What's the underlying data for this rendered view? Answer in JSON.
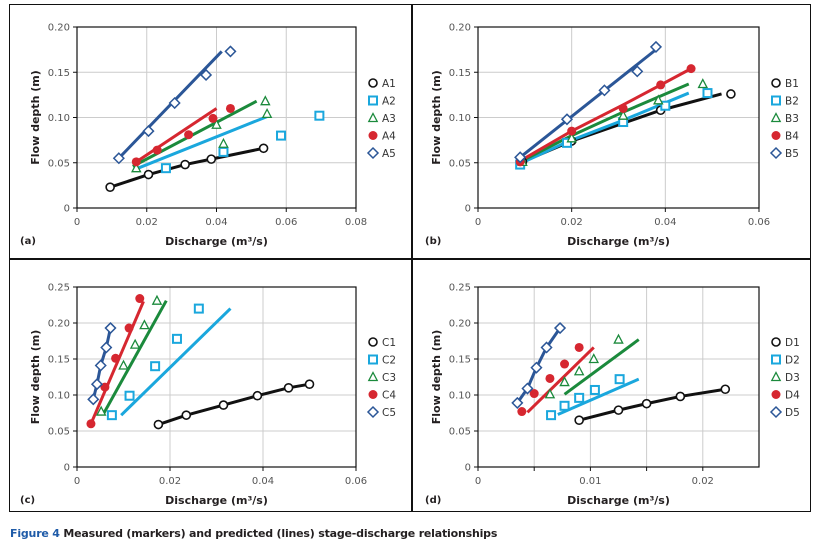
{
  "caption": {
    "figure_label": "Figure 4",
    "text": "Measured (markers) and predicted (lines) stage-discharge relationships"
  },
  "colors": {
    "s1": "#111111",
    "s2": "#1aa7dd",
    "s3": "#1b8a3c",
    "s4": "#d62730",
    "s5": "#2b5697",
    "grid": "#cccccc"
  },
  "chart_data": [
    {
      "type": "scatter",
      "panel_label": "(a)",
      "xlabel": "Discharge (m³/s)",
      "ylabel": "Flow depth (m)",
      "xlim": [
        0,
        0.08
      ],
      "ylim": [
        0,
        0.2
      ],
      "xticks": [
        0,
        0.02,
        0.04,
        0.06,
        0.08
      ],
      "xtick_labels": [
        "0",
        "0.02",
        "0.04",
        "0.06",
        "0.08"
      ],
      "yticks": [
        0,
        0.05,
        0.1,
        0.15,
        0.2
      ],
      "ytick_labels": [
        "0",
        "0.05",
        "0.10",
        "0.15",
        "0.20"
      ],
      "xgrid": [
        0.02,
        0.04,
        0.06
      ],
      "grid": true,
      "legend_position": "right",
      "series": [
        {
          "name": "A1",
          "marker": "circle",
          "points": [
            [
              0.0095,
              0.023
            ],
            [
              0.0205,
              0.037
            ],
            [
              0.031,
              0.048
            ],
            [
              0.0385,
              0.054
            ],
            [
              0.0535,
              0.066
            ]
          ],
          "line": [
            [
              0.0095,
              0.023
            ],
            [
              0.0205,
              0.037
            ],
            [
              0.031,
              0.048
            ],
            [
              0.0385,
              0.054
            ],
            [
              0.0535,
              0.066
            ]
          ]
        },
        {
          "name": "A2",
          "marker": "square",
          "points": [
            [
              0.0255,
              0.044
            ],
            [
              0.042,
              0.062
            ],
            [
              0.0585,
              0.08
            ],
            [
              0.0695,
              0.102
            ]
          ],
          "line": [
            [
              0.0175,
              0.044
            ],
            [
              0.0545,
              0.101
            ]
          ]
        },
        {
          "name": "A3",
          "marker": "triangle",
          "points": [
            [
              0.017,
              0.044
            ],
            [
              0.04,
              0.092
            ],
            [
              0.042,
              0.071
            ],
            [
              0.054,
              0.118
            ],
            [
              0.0545,
              0.104
            ]
          ],
          "line": [
            [
              0.016,
              0.046
            ],
            [
              0.0515,
              0.118
            ]
          ]
        },
        {
          "name": "A4",
          "marker": "dot",
          "points": [
            [
              0.017,
              0.051
            ],
            [
              0.023,
              0.064
            ],
            [
              0.032,
              0.081
            ],
            [
              0.039,
              0.099
            ],
            [
              0.044,
              0.11
            ]
          ],
          "line": [
            [
              0.017,
              0.051
            ],
            [
              0.04,
              0.11
            ]
          ]
        },
        {
          "name": "A5",
          "marker": "diamond",
          "points": [
            [
              0.012,
              0.055
            ],
            [
              0.0205,
              0.085
            ],
            [
              0.028,
              0.116
            ],
            [
              0.037,
              0.147
            ],
            [
              0.044,
              0.173
            ]
          ],
          "line": [
            [
              0.012,
              0.055
            ],
            [
              0.0415,
              0.173
            ]
          ]
        }
      ]
    },
    {
      "type": "scatter",
      "panel_label": "(b)",
      "xlabel": "Discharge (m³/s)",
      "ylabel": "Flow depth (m)",
      "xlim": [
        0,
        0.06
      ],
      "ylim": [
        0,
        0.2
      ],
      "xticks": [
        0,
        0.02,
        0.04,
        0.06
      ],
      "xtick_labels": [
        "0",
        "0.02",
        "0.04",
        "0.06"
      ],
      "yticks": [
        0,
        0.05,
        0.1,
        0.15,
        0.2
      ],
      "ytick_labels": [
        "0",
        "0.05",
        "0.10",
        "0.15",
        "0.20"
      ],
      "xgrid": [
        0.02,
        0.04
      ],
      "grid": true,
      "legend_position": "right",
      "series": [
        {
          "name": "B1",
          "marker": "circle",
          "points": [
            [
              0.0095,
              0.051
            ],
            [
              0.02,
              0.074
            ],
            [
              0.039,
              0.108
            ],
            [
              0.054,
              0.126
            ]
          ],
          "line": [
            [
              0.0095,
              0.051
            ],
            [
              0.02,
              0.074
            ],
            [
              0.039,
              0.108
            ],
            [
              0.052,
              0.126
            ]
          ]
        },
        {
          "name": "B2",
          "marker": "square",
          "points": [
            [
              0.009,
              0.048
            ],
            [
              0.019,
              0.072
            ],
            [
              0.031,
              0.095
            ],
            [
              0.04,
              0.113
            ],
            [
              0.049,
              0.127
            ]
          ],
          "line": [
            [
              0.009,
              0.049
            ],
            [
              0.019,
              0.073
            ],
            [
              0.031,
              0.097
            ],
            [
              0.045,
              0.127
            ]
          ]
        },
        {
          "name": "B3",
          "marker": "triangle",
          "points": [
            [
              0.0095,
              0.051
            ],
            [
              0.02,
              0.077
            ],
            [
              0.031,
              0.102
            ],
            [
              0.0385,
              0.119
            ],
            [
              0.048,
              0.137
            ]
          ],
          "line": [
            [
              0.009,
              0.051
            ],
            [
              0.02,
              0.08
            ],
            [
              0.031,
              0.106
            ],
            [
              0.045,
              0.137
            ]
          ]
        },
        {
          "name": "B4",
          "marker": "dot",
          "points": [
            [
              0.009,
              0.051
            ],
            [
              0.02,
              0.085
            ],
            [
              0.031,
              0.11
            ],
            [
              0.039,
              0.136
            ],
            [
              0.0455,
              0.154
            ]
          ],
          "line": [
            [
              0.009,
              0.052
            ],
            [
              0.02,
              0.085
            ],
            [
              0.031,
              0.114
            ],
            [
              0.039,
              0.136
            ],
            [
              0.0455,
              0.154
            ]
          ]
        },
        {
          "name": "B5",
          "marker": "diamond",
          "points": [
            [
              0.009,
              0.056
            ],
            [
              0.019,
              0.098
            ],
            [
              0.027,
              0.13
            ],
            [
              0.034,
              0.151
            ],
            [
              0.038,
              0.178
            ]
          ],
          "line": [
            [
              0.009,
              0.056
            ],
            [
              0.038,
              0.175
            ]
          ]
        }
      ]
    },
    {
      "type": "scatter",
      "panel_label": "(c)",
      "xlabel": "Discharge (m³/s)",
      "ylabel": "Flow depth (m)",
      "xlim": [
        0,
        0.06
      ],
      "ylim": [
        0,
        0.25
      ],
      "xticks": [
        0,
        0.02,
        0.04,
        0.06
      ],
      "xtick_labels": [
        "0",
        "0.02",
        "0.04",
        "0.06"
      ],
      "yticks": [
        0,
        0.05,
        0.1,
        0.15,
        0.2,
        0.25
      ],
      "ytick_labels": [
        "0",
        "0.05",
        "0.10",
        "0.15",
        "0.20",
        "0.25"
      ],
      "xgrid": [
        0.02,
        0.04
      ],
      "grid": true,
      "legend_position": "right",
      "series": [
        {
          "name": "C1",
          "marker": "circle",
          "points": [
            [
              0.0175,
              0.059
            ],
            [
              0.0235,
              0.072
            ],
            [
              0.0315,
              0.086
            ],
            [
              0.0388,
              0.099
            ],
            [
              0.0455,
              0.11
            ],
            [
              0.05,
              0.115
            ]
          ],
          "line": [
            [
              0.0175,
              0.059
            ],
            [
              0.0235,
              0.072
            ],
            [
              0.0315,
              0.086
            ],
            [
              0.0388,
              0.099
            ],
            [
              0.0455,
              0.11
            ],
            [
              0.05,
              0.115
            ]
          ]
        },
        {
          "name": "C2",
          "marker": "square",
          "points": [
            [
              0.0075,
              0.072
            ],
            [
              0.0113,
              0.099
            ],
            [
              0.0168,
              0.14
            ],
            [
              0.0215,
              0.178
            ],
            [
              0.0262,
              0.22
            ]
          ],
          "line": [
            [
              0.0095,
              0.072
            ],
            [
              0.033,
              0.22
            ]
          ]
        },
        {
          "name": "C3",
          "marker": "triangle",
          "points": [
            [
              0.0052,
              0.077
            ],
            [
              0.01,
              0.141
            ],
            [
              0.0125,
              0.17
            ],
            [
              0.0145,
              0.197
            ],
            [
              0.0172,
              0.231
            ]
          ],
          "line": [
            [
              0.0058,
              0.075
            ],
            [
              0.0192,
              0.231
            ]
          ]
        },
        {
          "name": "C4",
          "marker": "dot",
          "points": [
            [
              0.003,
              0.06
            ],
            [
              0.006,
              0.111
            ],
            [
              0.0083,
              0.151
            ],
            [
              0.0112,
              0.193
            ],
            [
              0.0135,
              0.234
            ]
          ],
          "line": [
            [
              0.003,
              0.06
            ],
            [
              0.0143,
              0.23
            ]
          ]
        },
        {
          "name": "C5",
          "marker": "diamond",
          "points": [
            [
              0.0035,
              0.094
            ],
            [
              0.0043,
              0.115
            ],
            [
              0.0051,
              0.141
            ],
            [
              0.0063,
              0.166
            ],
            [
              0.0072,
              0.193
            ]
          ],
          "line": [
            [
              0.0035,
              0.094
            ],
            [
              0.0043,
              0.115
            ],
            [
              0.0051,
              0.141
            ],
            [
              0.0063,
              0.166
            ],
            [
              0.0072,
              0.193
            ]
          ]
        }
      ]
    },
    {
      "type": "scatter",
      "panel_label": "(d)",
      "xlabel": "Discharge (m³/s)",
      "ylabel": "Flow depth (m)",
      "xlim": [
        0,
        0.025
      ],
      "ylim": [
        0,
        0.25
      ],
      "xticks": [
        0,
        0.01,
        0.02
      ],
      "xtick_labels": [
        "0",
        "0.01",
        "0.02"
      ],
      "yticks": [
        0,
        0.05,
        0.1,
        0.15,
        0.2,
        0.25
      ],
      "ytick_labels": [
        "0",
        "0.05",
        "0.10",
        "0.15",
        "0.20",
        "0.25"
      ],
      "xgrid": [
        0.005,
        0.01,
        0.015,
        0.02
      ],
      "grid": true,
      "legend_position": "right",
      "series": [
        {
          "name": "D1",
          "marker": "circle",
          "points": [
            [
              0.009,
              0.065
            ],
            [
              0.0125,
              0.079
            ],
            [
              0.015,
              0.088
            ],
            [
              0.018,
              0.098
            ],
            [
              0.022,
              0.108
            ]
          ],
          "line": [
            [
              0.009,
              0.065
            ],
            [
              0.0125,
              0.079
            ],
            [
              0.015,
              0.088
            ],
            [
              0.018,
              0.098
            ],
            [
              0.022,
              0.108
            ]
          ]
        },
        {
          "name": "D2",
          "marker": "square",
          "points": [
            [
              0.0065,
              0.072
            ],
            [
              0.0077,
              0.085
            ],
            [
              0.009,
              0.096
            ],
            [
              0.0104,
              0.107
            ],
            [
              0.0126,
              0.122
            ]
          ],
          "line": [
            [
              0.0071,
              0.073
            ],
            [
              0.0143,
              0.122
            ]
          ]
        },
        {
          "name": "D3",
          "marker": "triangle",
          "points": [
            [
              0.0064,
              0.101
            ],
            [
              0.0077,
              0.118
            ],
            [
              0.009,
              0.133
            ],
            [
              0.0103,
              0.15
            ],
            [
              0.0125,
              0.177
            ]
          ],
          "line": [
            [
              0.0077,
              0.101
            ],
            [
              0.0143,
              0.177
            ]
          ]
        },
        {
          "name": "D4",
          "marker": "dot",
          "points": [
            [
              0.0039,
              0.077
            ],
            [
              0.005,
              0.102
            ],
            [
              0.0064,
              0.123
            ],
            [
              0.0077,
              0.143
            ],
            [
              0.009,
              0.166
            ]
          ],
          "line": [
            [
              0.0044,
              0.076
            ],
            [
              0.0103,
              0.166
            ]
          ]
        },
        {
          "name": "D5",
          "marker": "diamond",
          "points": [
            [
              0.0035,
              0.089
            ],
            [
              0.0044,
              0.109
            ],
            [
              0.0052,
              0.138
            ],
            [
              0.0061,
              0.166
            ],
            [
              0.0073,
              0.193
            ]
          ],
          "line": [
            [
              0.0035,
              0.089
            ],
            [
              0.0044,
              0.109
            ],
            [
              0.0052,
              0.138
            ],
            [
              0.0061,
              0.166
            ],
            [
              0.0073,
              0.193
            ]
          ]
        }
      ]
    }
  ]
}
